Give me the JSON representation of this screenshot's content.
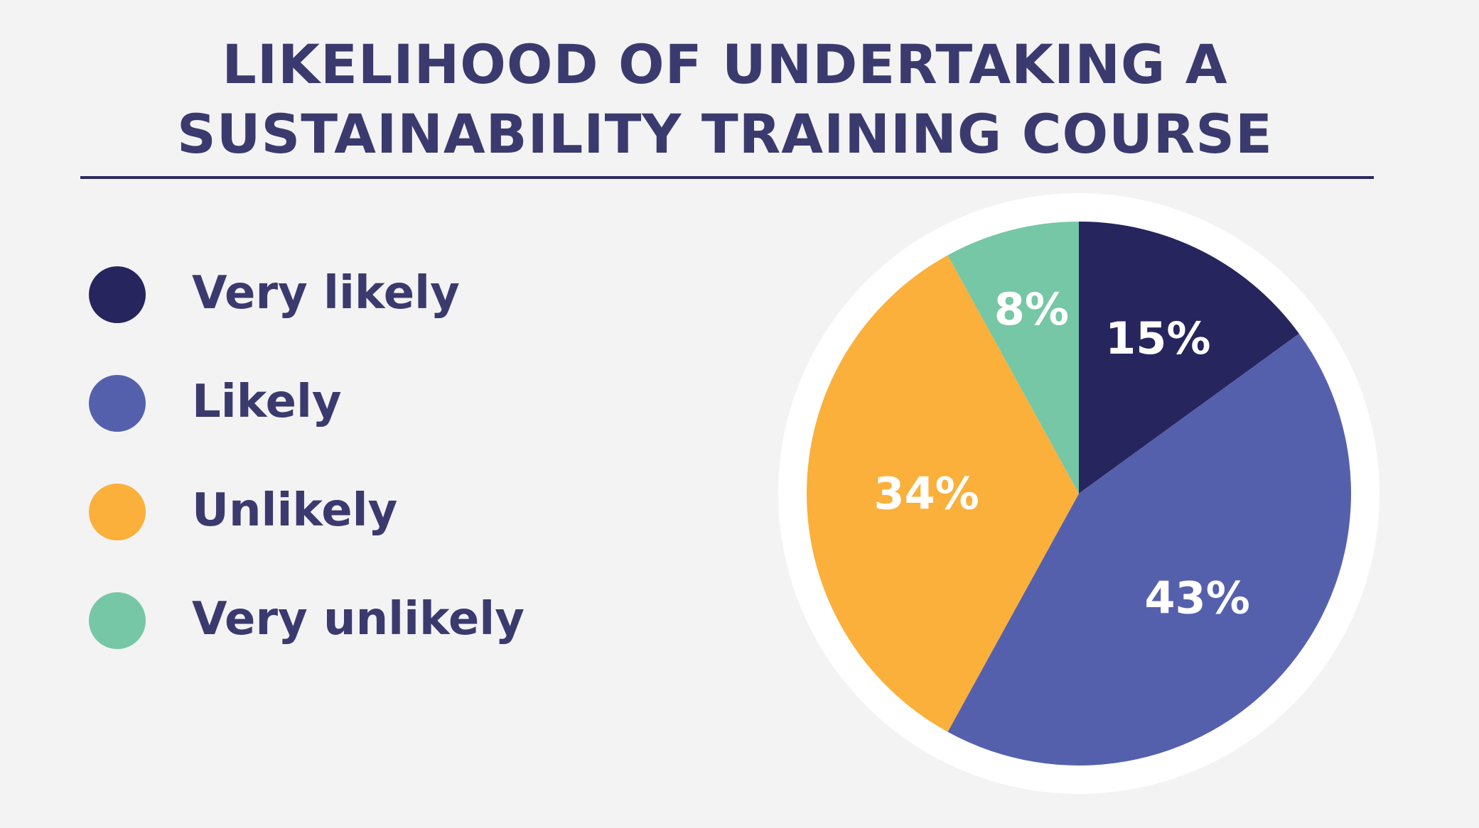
{
  "chart_data": {
    "type": "pie",
    "title_lines": [
      "LIKELIHOOD OF UNDERTAKING A",
      "SUSTAINABILITY TRAINING COURSE"
    ],
    "slices": [
      {
        "name": "Very likely",
        "value": 15,
        "label": "15%",
        "color": "#27255e"
      },
      {
        "name": "Likely",
        "value": 43,
        "label": "43%",
        "color": "#5560ad"
      },
      {
        "name": "Unlikely",
        "value": 34,
        "label": "34%",
        "color": "#fab03b"
      },
      {
        "name": "Very unlikely",
        "value": 8,
        "label": "8%",
        "color": "#76c7a5"
      }
    ],
    "legend_position": "left",
    "start_angle": "12 o'clock",
    "direction": "clockwise",
    "ring_color": "#ffffff"
  }
}
